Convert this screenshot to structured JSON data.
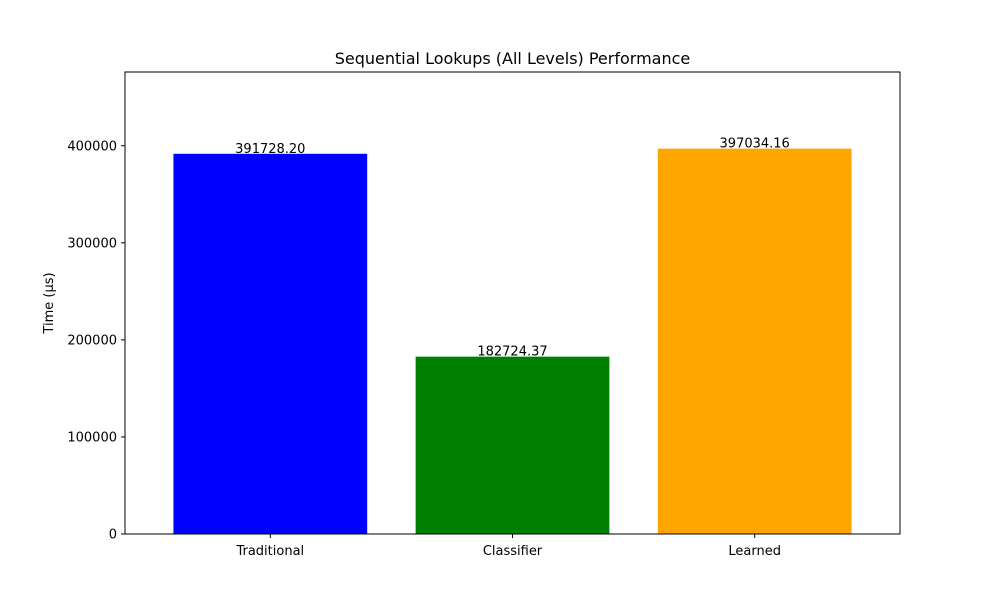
{
  "chart_data": {
    "type": "bar",
    "title": "Sequential Lookups (All Levels) Performance",
    "xlabel": "",
    "ylabel": "Time (µs)",
    "categories": [
      "Traditional",
      "Classifier",
      "Learned"
    ],
    "values": [
      391728.2,
      182724.37,
      397034.16
    ],
    "value_labels": [
      "391728.20",
      "182724.37",
      "397034.16"
    ],
    "colors": [
      "#0000ff",
      "#008000",
      "#ffa500"
    ],
    "ylim": [
      0,
      476000
    ],
    "yticks": [
      0,
      100000,
      200000,
      300000,
      400000
    ],
    "ytick_labels": [
      "0",
      "100000",
      "200000",
      "300000",
      "400000"
    ],
    "grid": false,
    "legend": "none"
  }
}
